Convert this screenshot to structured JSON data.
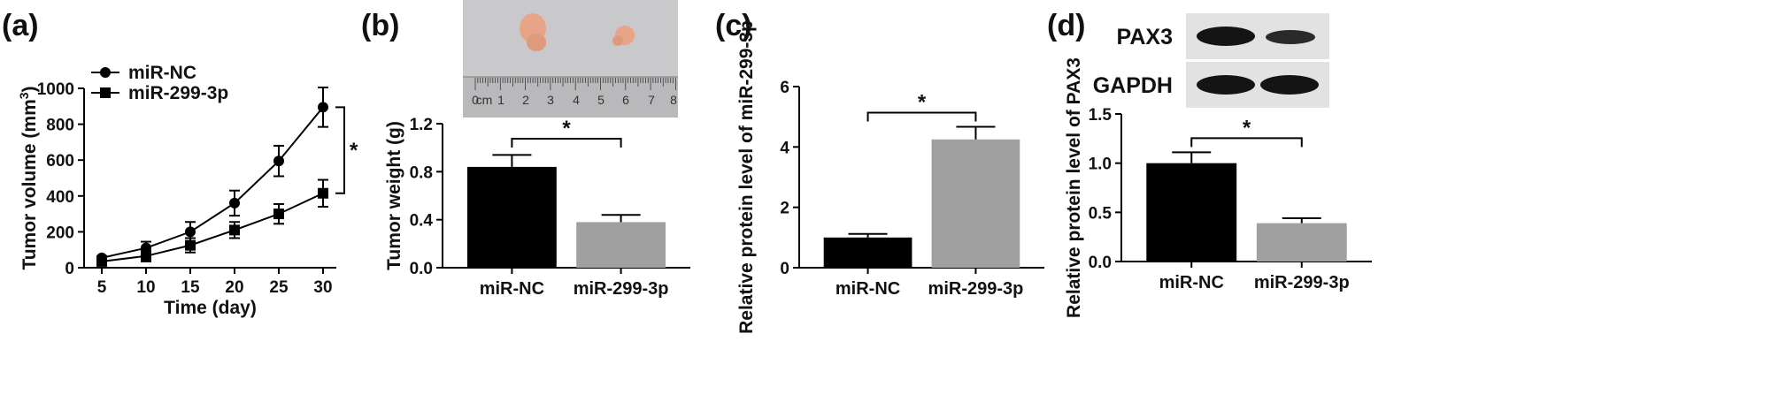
{
  "panels": [
    {
      "label": "(a)"
    },
    {
      "label": "(b)"
    },
    {
      "label": "(c)"
    },
    {
      "label": "(d)"
    }
  ],
  "photo": {
    "ruler_numbers": [
      "0",
      "cm",
      "1",
      "2",
      "3",
      "4",
      "5",
      "6",
      "7",
      "8"
    ],
    "tumor_color": "#e8a487"
  },
  "blot": {
    "labels": [
      "PAX3",
      "GAPDH"
    ]
  },
  "colors": {
    "black": "#000000",
    "grey": "#a0a0a0"
  },
  "chart_data": [
    {
      "type": "line",
      "xlabel": "Time (day)",
      "ylabel": "Tumor volume (mm",
      "ylabel_sup": "3",
      "ylabel_end": ")",
      "x": [
        5,
        10,
        15,
        20,
        25,
        30
      ],
      "xticks": [
        "5",
        "10",
        "15",
        "20",
        "25",
        "30"
      ],
      "yticks": [
        "0",
        "200",
        "400",
        "600",
        "800",
        "1000"
      ],
      "ylim": [
        0,
        1000
      ],
      "xlim": [
        3,
        31.5
      ],
      "series": [
        {
          "name": "miR-NC",
          "marker": "circle",
          "values": [
            55,
            110,
            200,
            360,
            595,
            895
          ],
          "err": [
            10,
            35,
            55,
            70,
            85,
            110
          ]
        },
        {
          "name": "miR-299-3p",
          "marker": "square",
          "values": [
            35,
            65,
            125,
            210,
            300,
            415
          ],
          "err": [
            10,
            30,
            40,
            45,
            55,
            75
          ]
        }
      ],
      "significance": "*"
    },
    {
      "type": "bar",
      "categories": [
        "miR-NC",
        "miR-299-3p"
      ],
      "values": [
        0.84,
        0.38
      ],
      "err": [
        0.1,
        0.06
      ],
      "ylabel": "Tumor weight (g)",
      "yticks": [
        "0.0",
        "0.4",
        "0.8",
        "1.2"
      ],
      "ylim": [
        0,
        1.2
      ],
      "significance": "*"
    },
    {
      "type": "bar",
      "categories": [
        "miR-NC",
        "miR-299-3p"
      ],
      "values": [
        1.0,
        4.25
      ],
      "err": [
        0.12,
        0.42
      ],
      "ylabel": "Relative protein level of miR-299-3p",
      "yticks": [
        "0",
        "2",
        "4",
        "6"
      ],
      "ylim": [
        0,
        6
      ],
      "significance": "*"
    },
    {
      "type": "bar",
      "categories": [
        "miR-NC",
        "miR-299-3p"
      ],
      "values": [
        1.0,
        0.39
      ],
      "err": [
        0.11,
        0.05
      ],
      "ylabel": "Relative protein level of PAX3",
      "yticks": [
        "0.0",
        "0.5",
        "1.0",
        "1.5"
      ],
      "ylim": [
        0,
        1.5
      ],
      "significance": "*"
    }
  ]
}
